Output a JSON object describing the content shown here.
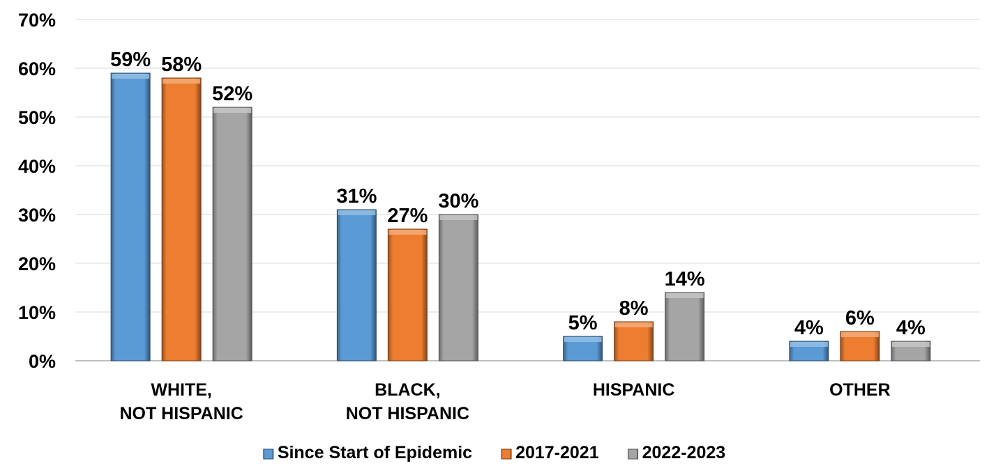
{
  "chart_data": {
    "type": "bar",
    "categories": [
      [
        "WHITE,",
        "NOT HISPANIC"
      ],
      [
        "BLACK,",
        "NOT HISPANIC"
      ],
      [
        "HISPANIC"
      ],
      [
        "OTHER"
      ]
    ],
    "series": [
      {
        "name": "Since Start of Epidemic",
        "values": [
          59,
          31,
          5,
          4
        ],
        "labels": [
          "59%",
          "31%",
          "5%",
          "4%"
        ],
        "color": "#5b9bd5"
      },
      {
        "name": "2017-2021",
        "values": [
          58,
          27,
          8,
          6
        ],
        "labels": [
          "58%",
          "27%",
          "8%",
          "6%"
        ],
        "color": "#ed7d31"
      },
      {
        "name": "2022-2023",
        "values": [
          52,
          30,
          14,
          4
        ],
        "labels": [
          "52%",
          "30%",
          "14%",
          "4%"
        ],
        "color": "#a5a5a5"
      }
    ],
    "y_ticks": [
      "0%",
      "10%",
      "20%",
      "30%",
      "40%",
      "50%",
      "60%",
      "70%"
    ],
    "ylim": [
      0,
      70
    ],
    "grid": true,
    "legend_position": "bottom",
    "title": "",
    "xlabel": "",
    "ylabel": ""
  }
}
